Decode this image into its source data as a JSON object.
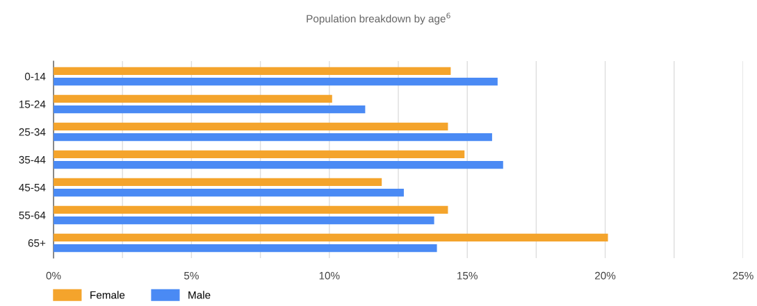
{
  "chart_data": {
    "type": "bar",
    "orientation": "horizontal",
    "title": "Population breakdown by age$^{6}$",
    "categories": [
      "0-14",
      "15-24",
      "25-34",
      "35-44",
      "45-54",
      "55-64",
      "65+"
    ],
    "series": [
      {
        "name": "Female",
        "color": "#f4a42c",
        "values": [
          14.4,
          10.1,
          14.3,
          14.9,
          11.9,
          14.3,
          20.1
        ]
      },
      {
        "name": "Male",
        "color": "#4a8af4",
        "values": [
          16.1,
          11.3,
          15.9,
          16.3,
          12.7,
          13.8,
          13.9
        ]
      }
    ],
    "xlim": [
      0,
      25
    ],
    "xticks": [
      {
        "value": 0,
        "label": "0%"
      },
      {
        "value": 2.5,
        "label": null
      },
      {
        "value": 5,
        "label": "5%"
      },
      {
        "value": 7.5,
        "label": null
      },
      {
        "value": 10,
        "label": "10%"
      },
      {
        "value": 12.5,
        "label": null
      },
      {
        "value": 15,
        "label": "15%"
      },
      {
        "value": 17.5,
        "label": null
      },
      {
        "value": 20,
        "label": "20%"
      },
      {
        "value": 22.5,
        "label": null
      },
      {
        "value": 25,
        "label": "25%"
      }
    ],
    "grid": "x",
    "legend": "bottom left"
  }
}
